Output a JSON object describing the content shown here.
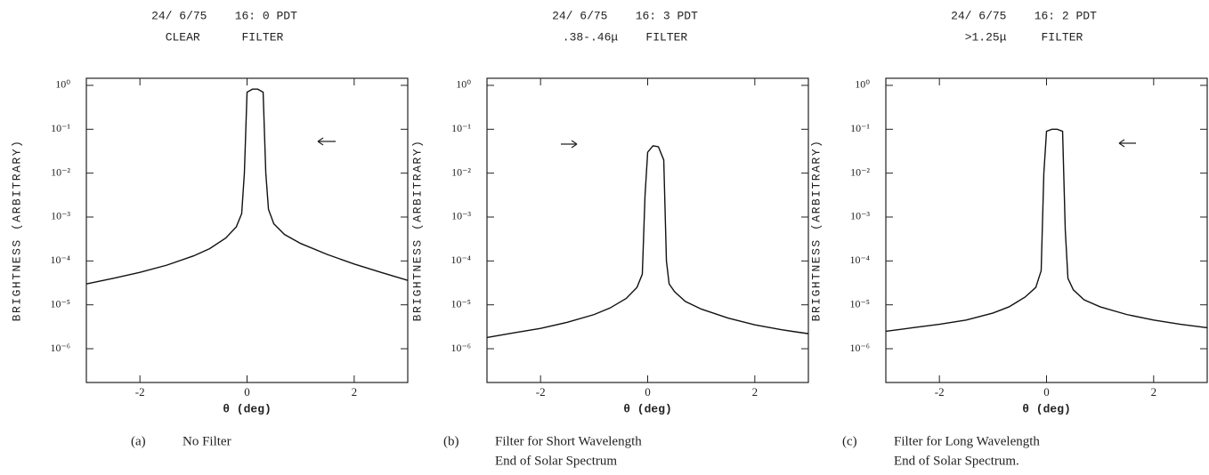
{
  "chart_data": [
    {
      "type": "line",
      "title": "24/ 6/75    16: 0 PDT",
      "subtitle": "CLEAR      FILTER",
      "caption": {
        "label": "(a)",
        "lines": [
          "No Filter"
        ]
      },
      "x_label": "θ (deg)",
      "y_label": "BRIGHTNESS (ARBITRARY)",
      "yscale": "log",
      "xlim": [
        -3,
        3
      ],
      "ylim": [
        1.7e-07,
        1.45
      ],
      "xticks": [
        -2,
        0,
        2
      ],
      "yticks": [
        {
          "value": 1,
          "label": "10⁰"
        },
        {
          "value": 0.1,
          "label": "10⁻¹"
        },
        {
          "value": 0.01,
          "label": "10⁻²"
        },
        {
          "value": 0.001,
          "label": "10⁻³"
        },
        {
          "value": 0.0001,
          "label": "10⁻⁴"
        },
        {
          "value": 1e-05,
          "label": "10⁻⁵"
        },
        {
          "value": 1e-06,
          "label": "10⁻⁶"
        }
      ],
      "x": [
        -3,
        -2.5,
        -2,
        -1.5,
        -1,
        -0.7,
        -0.4,
        -0.2,
        -0.1,
        -0.05,
        0,
        0.1,
        0.2,
        0.3,
        0.35,
        0.4,
        0.5,
        0.7,
        1,
        1.5,
        2,
        2.5,
        3
      ],
      "series": [
        {
          "color": "#111111",
          "values": [
            3e-05,
            4e-05,
            5.5e-05,
            8e-05,
            0.00013,
            0.00019,
            0.00033,
            0.0006,
            0.0012,
            0.01,
            0.7,
            0.82,
            0.82,
            0.7,
            0.01,
            0.0015,
            0.0007,
            0.0004,
            0.00025,
            0.00014,
            8.5e-05,
            5.5e-05,
            3.6e-05
          ]
        }
      ]
    },
    {
      "type": "line",
      "title": "24/ 6/75    16: 3 PDT",
      "subtitle": ".38-.46μ    FILTER",
      "caption": {
        "label": "(b)",
        "lines": [
          "Filter for Short Wavelength",
          "End of Solar Spectrum"
        ]
      },
      "x_label": "θ (deg)",
      "y_label": "BRIGHTNESS (ARBITRARY)",
      "yscale": "log",
      "xlim": [
        -3,
        3
      ],
      "ylim": [
        1.7e-07,
        1.45
      ],
      "xticks": [
        -2,
        0,
        2
      ],
      "yticks": [
        {
          "value": 1,
          "label": "10⁰"
        },
        {
          "value": 0.1,
          "label": "10⁻¹"
        },
        {
          "value": 0.01,
          "label": "10⁻²"
        },
        {
          "value": 0.001,
          "label": "10⁻³"
        },
        {
          "value": 0.0001,
          "label": "10⁻⁴"
        },
        {
          "value": 1e-05,
          "label": "10⁻⁵"
        },
        {
          "value": 1e-06,
          "label": "10⁻⁶"
        }
      ],
      "x": [
        -3,
        -2.5,
        -2,
        -1.5,
        -1,
        -0.7,
        -0.4,
        -0.2,
        -0.1,
        -0.05,
        0,
        0.1,
        0.2,
        0.3,
        0.35,
        0.4,
        0.5,
        0.7,
        1,
        1.5,
        2,
        2.5,
        3
      ],
      "series": [
        {
          "color": "#111111",
          "values": [
            1.8e-06,
            2.3e-06,
            2.9e-06,
            4e-06,
            6e-06,
            8.5e-06,
            1.4e-05,
            2.5e-05,
            5e-05,
            0.003,
            0.03,
            0.042,
            0.04,
            0.02,
            0.0001,
            3e-05,
            2e-05,
            1.2e-05,
            8e-06,
            5e-06,
            3.5e-06,
            2.7e-06,
            2.2e-06
          ]
        }
      ]
    },
    {
      "type": "line",
      "title": "24/ 6/75    16: 2 PDT",
      "subtitle": ">1.25μ     FILTER",
      "caption": {
        "label": "(c)",
        "lines": [
          "Filter for Long Wavelength",
          "End of Solar Spectrum."
        ]
      },
      "x_label": "θ (deg)",
      "y_label": "BRIGHTNESS (ARBITRARY)",
      "yscale": "log",
      "xlim": [
        -3,
        3
      ],
      "ylim": [
        1.7e-07,
        1.45
      ],
      "xticks": [
        -2,
        0,
        2
      ],
      "yticks": [
        {
          "value": 1,
          "label": "10⁰"
        },
        {
          "value": 0.1,
          "label": "10⁻¹"
        },
        {
          "value": 0.01,
          "label": "10⁻²"
        },
        {
          "value": 0.001,
          "label": "10⁻³"
        },
        {
          "value": 0.0001,
          "label": "10⁻⁴"
        },
        {
          "value": 1e-05,
          "label": "10⁻⁵"
        },
        {
          "value": 1e-06,
          "label": "10⁻⁶"
        }
      ],
      "x": [
        -3,
        -2.5,
        -2,
        -1.5,
        -1,
        -0.7,
        -0.4,
        -0.2,
        -0.1,
        -0.05,
        0,
        0.1,
        0.2,
        0.3,
        0.35,
        0.4,
        0.5,
        0.7,
        1,
        1.5,
        2,
        2.5,
        3
      ],
      "series": [
        {
          "color": "#111111",
          "values": [
            2.5e-06,
            3e-06,
            3.6e-06,
            4.5e-06,
            6.5e-06,
            9e-06,
            1.5e-05,
            2.5e-05,
            6e-05,
            0.01,
            0.09,
            0.1,
            0.1,
            0.09,
            0.0005,
            4e-05,
            2.2e-05,
            1.3e-05,
            9e-06,
            6e-06,
            4.5e-06,
            3.6e-06,
            3e-06
          ]
        }
      ]
    }
  ]
}
